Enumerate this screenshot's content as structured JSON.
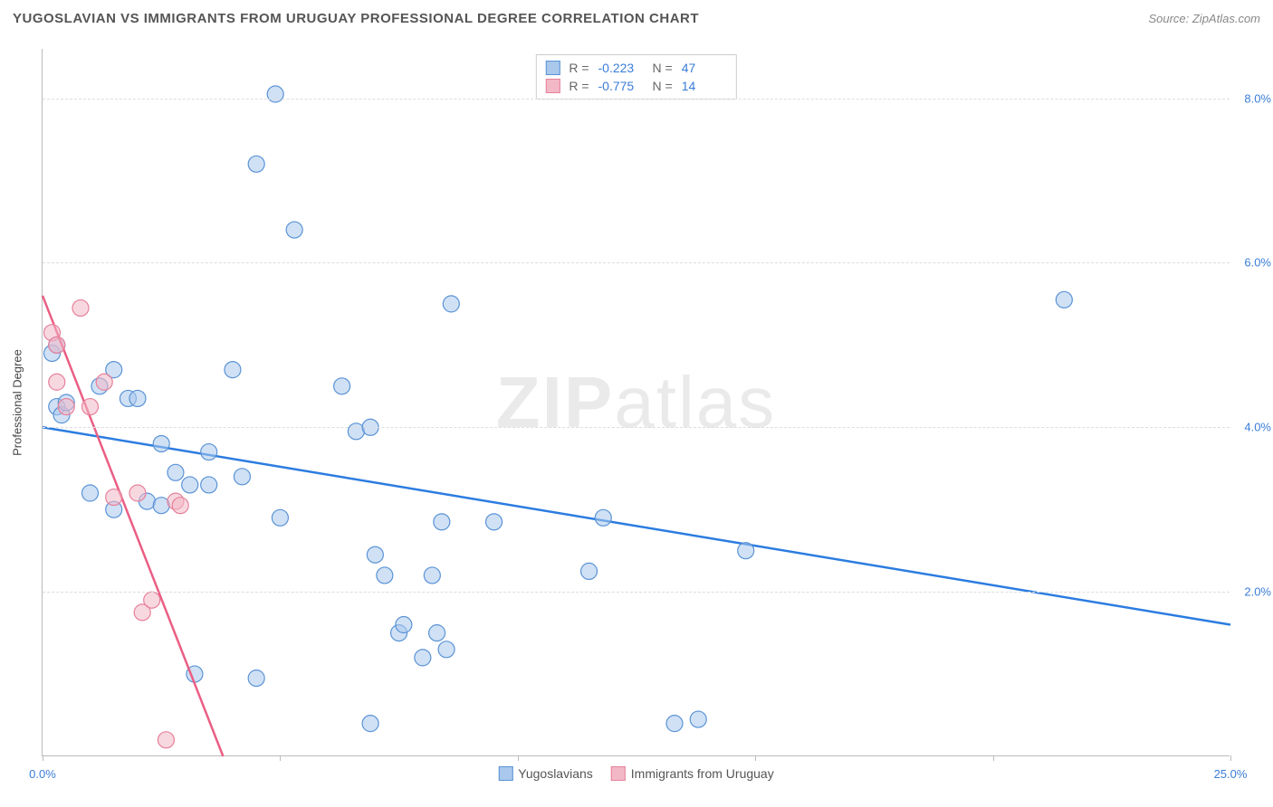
{
  "header": {
    "title": "YUGOSLAVIAN VS IMMIGRANTS FROM URUGUAY PROFESSIONAL DEGREE CORRELATION CHART",
    "source": "Source: ZipAtlas.com"
  },
  "watermark": {
    "zip": "ZIP",
    "rest": "atlas"
  },
  "chart": {
    "type": "scatter",
    "background_color": "#ffffff",
    "grid_color": "#dddddd",
    "axis_color": "#bbbbbb",
    "y_axis_label": "Professional Degree",
    "xlim": [
      0,
      25
    ],
    "ylim": [
      0,
      8.6
    ],
    "xticks": [
      0,
      5,
      10,
      15,
      20,
      25
    ],
    "xtick_labels": [
      "0.0%",
      "",
      "",
      "",
      "",
      "25.0%"
    ],
    "yticks": [
      2,
      4,
      6,
      8
    ],
    "ytick_labels": [
      "2.0%",
      "4.0%",
      "6.0%",
      "8.0%"
    ],
    "label_color": "#3b7dd8",
    "label_fontsize": 13,
    "marker_radius": 9,
    "marker_opacity": 0.55,
    "line_width": 2.5,
    "series": [
      {
        "name": "Yugoslavians",
        "color_fill": "#a9c8ec",
        "color_stroke": "#5a93d6",
        "line_color": "#2b7ce0",
        "R": "-0.223",
        "N": "47",
        "regression": {
          "x1": 0,
          "y1": 4.0,
          "x2": 25,
          "y2": 1.6
        },
        "points": [
          [
            0.2,
            4.9
          ],
          [
            0.3,
            5.0
          ],
          [
            0.3,
            4.25
          ],
          [
            0.4,
            4.15
          ],
          [
            0.5,
            4.3
          ],
          [
            1.0,
            3.2
          ],
          [
            1.2,
            4.5
          ],
          [
            1.5,
            3.0
          ],
          [
            1.8,
            4.35
          ],
          [
            2.0,
            4.35
          ],
          [
            1.5,
            4.7
          ],
          [
            2.2,
            3.1
          ],
          [
            2.5,
            3.8
          ],
          [
            2.5,
            3.05
          ],
          [
            2.8,
            3.45
          ],
          [
            3.1,
            3.3
          ],
          [
            3.2,
            1.0
          ],
          [
            3.5,
            3.7
          ],
          [
            3.5,
            3.3
          ],
          [
            4.0,
            4.7
          ],
          [
            4.2,
            3.4
          ],
          [
            4.5,
            0.95
          ],
          [
            4.5,
            7.2
          ],
          [
            4.9,
            8.05
          ],
          [
            5.3,
            6.4
          ],
          [
            5.0,
            2.9
          ],
          [
            6.3,
            4.5
          ],
          [
            6.6,
            3.95
          ],
          [
            6.9,
            0.4
          ],
          [
            6.9,
            4.0
          ],
          [
            7.0,
            2.45
          ],
          [
            7.2,
            2.2
          ],
          [
            7.5,
            1.5
          ],
          [
            7.6,
            1.6
          ],
          [
            8.0,
            1.2
          ],
          [
            8.2,
            2.2
          ],
          [
            8.3,
            1.5
          ],
          [
            8.4,
            2.85
          ],
          [
            8.5,
            1.3
          ],
          [
            8.6,
            5.5
          ],
          [
            9.5,
            2.85
          ],
          [
            11.5,
            2.25
          ],
          [
            11.8,
            2.9
          ],
          [
            13.3,
            0.4
          ],
          [
            14.8,
            2.5
          ],
          [
            13.8,
            0.45
          ],
          [
            21.5,
            5.55
          ]
        ]
      },
      {
        "name": "Immigrants from Uruguay",
        "color_fill": "#f3b8c6",
        "color_stroke": "#e6809b",
        "line_color": "#ea5e84",
        "R": "-0.775",
        "N": "14",
        "regression": {
          "x1": 0,
          "y1": 5.6,
          "x2": 3.8,
          "y2": 0
        },
        "points": [
          [
            0.2,
            5.15
          ],
          [
            0.3,
            4.55
          ],
          [
            0.3,
            5.0
          ],
          [
            0.5,
            4.25
          ],
          [
            0.8,
            5.45
          ],
          [
            1.3,
            4.55
          ],
          [
            1.0,
            4.25
          ],
          [
            1.5,
            3.15
          ],
          [
            2.0,
            3.2
          ],
          [
            2.1,
            1.75
          ],
          [
            2.3,
            1.9
          ],
          [
            2.8,
            3.1
          ],
          [
            2.6,
            0.2
          ],
          [
            2.9,
            3.05
          ]
        ]
      }
    ],
    "legend_bottom": [
      {
        "label": "Yugoslavians",
        "fill": "#a9c8ec",
        "stroke": "#5a93d6"
      },
      {
        "label": "Immigrants from Uruguay",
        "fill": "#f3b8c6",
        "stroke": "#e6809b"
      }
    ]
  }
}
